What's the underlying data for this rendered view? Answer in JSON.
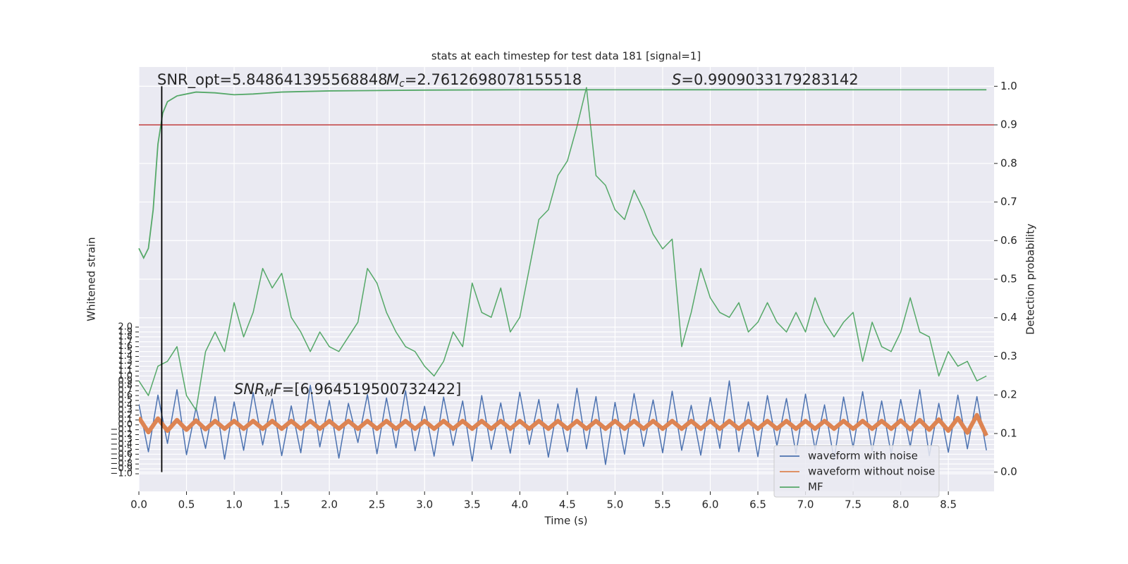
{
  "chart_data": {
    "type": "line",
    "title": "stats at each timestep for test data 181 [signal=1]",
    "xlabel": "Time (s)",
    "ylabel": "Whitened strain",
    "y2label": "Detection probability",
    "annotations": [
      [
        "SNR_opt=5.848641395568848"
      ],
      [
        "M",
        "c",
        "=2.7612698078155518"
      ],
      [
        "S",
        "=0.9909033179283142"
      ],
      [
        "SNR",
        "M",
        "F",
        "=[6.964519500732422]"
      ]
    ],
    "xlim": [
      0,
      8.98
    ],
    "xticks": [
      {
        "value": 0,
        "label": "0.0"
      },
      0.5,
      {
        "value": 1,
        "label": "1.0"
      },
      1.5,
      {
        "value": 2,
        "label": "2.0"
      },
      2.5,
      {
        "value": 3,
        "label": "3.0"
      },
      3.5,
      {
        "value": 4,
        "label": "4.0"
      },
      4.5,
      {
        "value": 5,
        "label": "5.0"
      },
      5.5,
      {
        "value": 6,
        "label": "6.0"
      },
      6.5,
      {
        "value": 7,
        "label": "7.0"
      },
      7.5,
      {
        "value": 8,
        "label": "8.0"
      },
      8.5
    ],
    "ylim": [
      -1.36,
      7.32
    ],
    "yticks": [
      {
        "value": -1,
        "label": "−1.0"
      },
      {
        "value": -0.9,
        "label": "−0.9"
      },
      {
        "value": -0.8,
        "label": "−0.8"
      },
      {
        "value": -0.7,
        "label": "−0.7"
      },
      {
        "value": -0.6,
        "label": "−0.6"
      },
      {
        "value": -0.5,
        "label": "−0.5"
      },
      {
        "value": -0.4,
        "label": "−0.4"
      },
      {
        "value": -0.3,
        "label": "−0.3"
      },
      {
        "value": -0.2,
        "label": "−0.2"
      },
      {
        "value": -0.1,
        "label": "−0.1"
      },
      {
        "value": 0,
        "label": "0.0"
      },
      0.1,
      0.2,
      0.3,
      0.4,
      0.5,
      0.6,
      0.7,
      0.8,
      0.9,
      {
        "value": 1,
        "label": "1.0"
      },
      1.1,
      1.2,
      1.3,
      1.4,
      1.5,
      1.6,
      1.7,
      1.8,
      1.9,
      {
        "value": 2,
        "label": "2.0"
      }
    ],
    "y2lim": [
      -0.05,
      1.05
    ],
    "y2ticks": [
      {
        "value": 0,
        "label": "0.0"
      },
      0.1,
      0.2,
      0.3,
      0.4,
      0.5,
      0.6,
      0.7,
      0.8,
      0.9,
      {
        "value": 1,
        "label": "1.0"
      }
    ],
    "grid": true,
    "legend": "lower right",
    "x": [
      0.0,
      0.1,
      0.2,
      0.3,
      0.4,
      0.5,
      0.6,
      0.7,
      0.8,
      0.9,
      1.0,
      1.1,
      1.2,
      1.3,
      1.4,
      1.5,
      1.6,
      1.7,
      1.8,
      1.9,
      2.0,
      2.1,
      2.2,
      2.3,
      2.4,
      2.5,
      2.6,
      2.7,
      2.8,
      2.9,
      3.0,
      3.1,
      3.2,
      3.3,
      3.4,
      3.5,
      3.6,
      3.7,
      3.8,
      3.9,
      4.0,
      4.1,
      4.2,
      4.3,
      4.4,
      4.5,
      4.6,
      4.7,
      4.8,
      4.9,
      5.0,
      5.1,
      5.2,
      5.3,
      5.4,
      5.5,
      5.6,
      5.7,
      5.8,
      5.9,
      6.0,
      6.1,
      6.2,
      6.3,
      6.4,
      6.5,
      6.6,
      6.7,
      6.8,
      6.9,
      7.0,
      7.1,
      7.2,
      7.3,
      7.4,
      7.5,
      7.6,
      7.7,
      7.8,
      7.9,
      8.0,
      8.1,
      8.2,
      8.3,
      8.4,
      8.5,
      8.6,
      8.7,
      8.8,
      8.9
    ],
    "series": [
      {
        "name": "waveform with noise",
        "color": "#4c72b0",
        "values": [
          0.42,
          -0.55,
          0.61,
          -0.38,
          0.72,
          -0.61,
          0.35,
          -0.48,
          0.58,
          -0.7,
          0.47,
          -0.52,
          0.66,
          -0.41,
          0.53,
          -0.63,
          0.39,
          -0.57,
          0.81,
          -0.45,
          0.5,
          -0.68,
          0.44,
          -0.36,
          0.62,
          -0.59,
          0.55,
          -0.47,
          0.7,
          -0.53,
          0.38,
          -0.64,
          0.57,
          -0.42,
          0.49,
          -0.74,
          0.6,
          -0.5,
          0.45,
          -0.58,
          0.67,
          -0.4,
          0.52,
          -0.66,
          0.43,
          -0.55,
          0.75,
          -0.49,
          0.58,
          -0.81,
          0.46,
          -0.6,
          0.64,
          -0.44,
          0.51,
          -0.57,
          0.69,
          -0.52,
          0.4,
          -0.62,
          0.56,
          -0.48,
          0.9,
          -0.55,
          0.47,
          -0.65,
          0.6,
          -0.43,
          0.54,
          -0.59,
          0.63,
          -0.5,
          0.41,
          -0.71,
          0.57,
          -0.46,
          0.68,
          -0.54,
          0.49,
          -0.6,
          0.52,
          -0.45,
          0.72,
          -0.63,
          0.44,
          -0.56,
          0.61,
          -0.49,
          0.58,
          -0.52
        ]
      },
      {
        "name": "waveform without noise",
        "color": "#dd8452",
        "values": [
          0.15,
          -0.15,
          0.13,
          -0.12,
          0.1,
          -0.1,
          0.09,
          -0.09,
          0.08,
          -0.08,
          0.08,
          -0.08,
          0.08,
          -0.08,
          0.08,
          -0.08,
          0.08,
          -0.08,
          0.08,
          -0.08,
          0.08,
          -0.08,
          0.08,
          -0.08,
          0.08,
          -0.08,
          0.08,
          -0.08,
          0.08,
          -0.08,
          0.08,
          -0.08,
          0.08,
          -0.08,
          0.08,
          -0.08,
          0.08,
          -0.08,
          0.08,
          -0.08,
          0.08,
          -0.08,
          0.08,
          -0.08,
          0.08,
          -0.08,
          0.08,
          -0.08,
          0.08,
          -0.08,
          0.08,
          -0.08,
          0.08,
          -0.08,
          0.08,
          -0.08,
          0.08,
          -0.08,
          0.08,
          -0.08,
          0.08,
          -0.08,
          0.08,
          -0.08,
          0.08,
          -0.08,
          0.08,
          -0.08,
          0.08,
          -0.08,
          0.08,
          -0.08,
          0.08,
          -0.08,
          0.08,
          -0.08,
          0.08,
          -0.08,
          0.08,
          -0.08,
          0.09,
          -0.09,
          0.1,
          -0.1,
          0.11,
          -0.12,
          0.14,
          -0.16,
          0.2,
          -0.22
        ]
      },
      {
        "name": "MF",
        "color": "#55a868",
        "values": [
          0.9,
          0.6,
          1.2,
          1.3,
          1.6,
          0.6,
          0.3,
          1.5,
          1.9,
          1.5,
          2.5,
          1.8,
          2.3,
          3.2,
          2.8,
          3.1,
          2.2,
          1.9,
          1.5,
          1.9,
          1.6,
          1.5,
          1.8,
          2.1,
          3.2,
          2.9,
          2.3,
          1.9,
          1.6,
          1.5,
          1.2,
          1.0,
          1.3,
          1.9,
          1.6,
          2.9,
          2.3,
          2.2,
          2.8,
          1.9,
          2.2,
          3.2,
          4.2,
          4.4,
          5.1,
          5.4,
          6.1,
          6.9,
          5.1,
          4.9,
          4.4,
          4.2,
          4.8,
          4.4,
          3.9,
          3.6,
          3.8,
          1.6,
          2.3,
          3.2,
          2.6,
          2.3,
          2.2,
          2.5,
          1.9,
          2.1,
          2.5,
          2.1,
          1.9,
          2.3,
          1.9,
          2.6,
          2.1,
          1.8,
          2.1,
          2.3,
          1.3,
          2.1,
          1.6,
          1.5,
          1.9,
          2.6,
          1.9,
          1.8,
          1.0,
          1.5,
          1.2,
          1.3,
          0.9,
          1.0
        ]
      }
    ],
    "probability": {
      "color": "#55a868",
      "axis": "y2",
      "x": [
        0.0,
        0.05,
        0.1,
        0.15,
        0.2,
        0.25,
        0.3,
        0.4,
        0.5,
        0.6,
        0.8,
        1.0,
        1.2,
        1.5,
        2.0,
        3.0,
        4.0,
        5.0,
        8.9
      ],
      "values": [
        0.58,
        0.555,
        0.58,
        0.68,
        0.85,
        0.93,
        0.96,
        0.975,
        0.98,
        0.985,
        0.983,
        0.978,
        0.98,
        0.985,
        0.988,
        0.99,
        0.991,
        0.991,
        0.991
      ]
    },
    "hline": 0.9,
    "hline_color": "#c03d3e",
    "vline": 0.24,
    "vline_color": "#000000"
  }
}
